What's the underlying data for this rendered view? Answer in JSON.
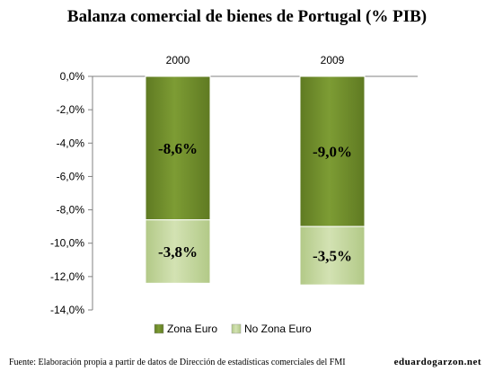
{
  "chart_data": {
    "type": "bar",
    "stacked": true,
    "title": "Balanza comercial de bienes de Portugal (% PIB)",
    "categories": [
      "2000",
      "2009"
    ],
    "series": [
      {
        "name": "Zona Euro",
        "values": [
          -8.6,
          -9.0
        ],
        "labels": [
          "-8,6%",
          "-9,0%"
        ],
        "color": "#6e8c2a"
      },
      {
        "name": "No Zona Euro",
        "values": [
          -3.8,
          -3.5
        ],
        "labels": [
          "-3,8%",
          "-3,5%"
        ],
        "color": "#c3d69b"
      }
    ],
    "ylim": [
      -14,
      0
    ],
    "yticks": [
      0,
      -2,
      -4,
      -6,
      -8,
      -10,
      -12,
      -14
    ],
    "ytick_labels": [
      "0,0%",
      "-2,0%",
      "-4,0%",
      "-6,0%",
      "-8,0%",
      "-10,0%",
      "-12,0%",
      "-14,0%"
    ],
    "xaxis_position": "top",
    "legend": {
      "position": "bottom",
      "entries": [
        "Zona Euro",
        "No Zona Euro"
      ]
    },
    "grid": false
  },
  "footer": {
    "source": "Fuente:  Elaboración propia a partir de datos de Dirección de estadísticas comerciales  del FMI",
    "site": "eduardogarzon.net"
  }
}
